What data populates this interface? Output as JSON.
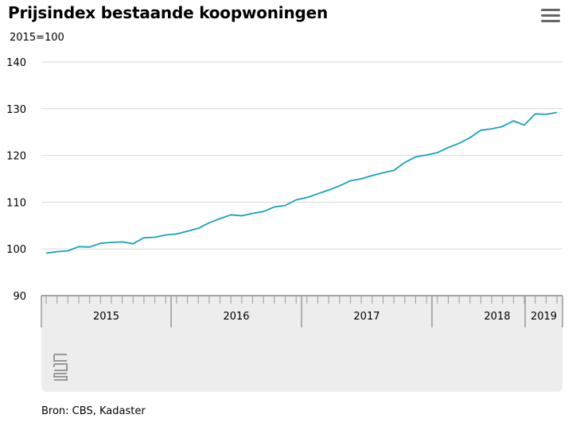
{
  "title": "Prijsindex bestaande koopwoningen",
  "subtitle": "2015=100",
  "source": "Bron: CBS, Kadaster",
  "menu_icon": "hamburger-menu-icon",
  "logo_icon": "cbs-logo-icon",
  "colors": {
    "line": "#1aa1b9",
    "grid": "#d9d9d9",
    "navigator_bg": "#ededed",
    "axis": "#999999"
  },
  "chart_data": {
    "type": "line",
    "title": "Prijsindex bestaande koopwoningen",
    "ylabel": "2015=100",
    "ylim": [
      90,
      140
    ],
    "yticks": [
      90,
      100,
      110,
      120,
      130,
      140
    ],
    "grid": true,
    "year_labels": [
      "2015",
      "2016",
      "2017",
      "2018",
      "2019"
    ],
    "x_start": "2015-01",
    "x_frequency": "monthly",
    "series": [
      {
        "values": [
          99.1,
          99.4,
          99.6,
          100.5,
          100.4,
          101.2,
          101.4,
          101.5,
          101.1,
          102.4,
          102.5,
          103.0,
          103.2,
          103.8,
          104.4,
          105.6,
          106.5,
          107.3,
          107.1,
          107.6,
          108.0,
          109.0,
          109.3,
          110.5,
          111.0,
          111.8,
          112.6,
          113.5,
          114.6,
          115.0,
          115.7,
          116.3,
          116.8,
          118.5,
          119.7,
          120.1,
          120.6,
          121.7,
          122.6,
          123.8,
          125.4,
          125.7,
          126.2,
          127.4,
          126.5,
          128.9,
          128.8,
          129.2
        ]
      }
    ]
  }
}
